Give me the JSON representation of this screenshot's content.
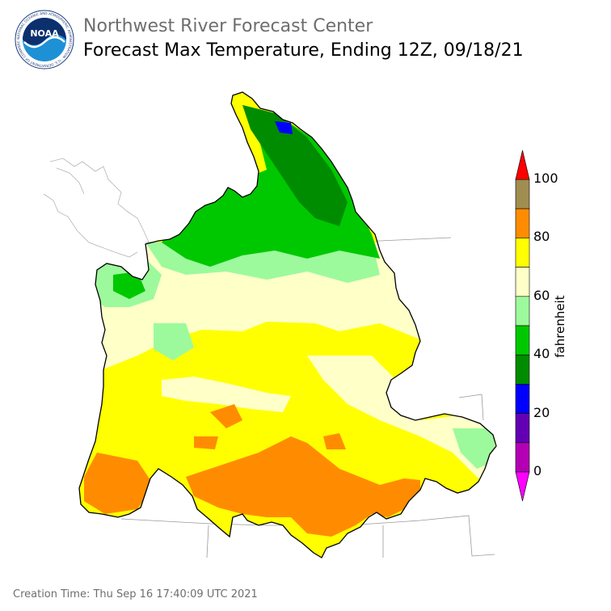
{
  "header": {
    "subtitle": "Northwest River Forecast Center",
    "title": "Forecast Max Temperature, Ending 12Z, 09/18/21",
    "logo_text": "NOAA",
    "logo_ring_text": "NATIONAL OCEANIC AND ATMOSPHERIC ADMINISTRATION · U.S. DEPARTMENT OF COMMERCE"
  },
  "legend": {
    "unit": "fahrenheit",
    "ticks": [
      "100",
      "80",
      "60",
      "40",
      "20",
      "0"
    ],
    "bins": [
      {
        "range": "90-100",
        "color": "#a08d50"
      },
      {
        "range": "80-90",
        "color": "#ff8c00"
      },
      {
        "range": "70-80",
        "color": "#ffff00"
      },
      {
        "range": "60-70",
        "color": "#ffffc8"
      },
      {
        "range": "50-60",
        "color": "#9cfa9c"
      },
      {
        "range": "40-50",
        "color": "#00c800"
      },
      {
        "range": "30-40",
        "color": "#008c00"
      },
      {
        "range": "20-30",
        "color": "#0000ff"
      },
      {
        "range": "10-20",
        "color": "#6400b4"
      },
      {
        "range": "0-10",
        "color": "#b400b4"
      }
    ],
    "over_color": "#ff0000",
    "under_color": "#ff00ff"
  },
  "footer": {
    "creation_time": "Creation Time: Thu Sep 16 17:40:09 UTC 2021"
  }
}
